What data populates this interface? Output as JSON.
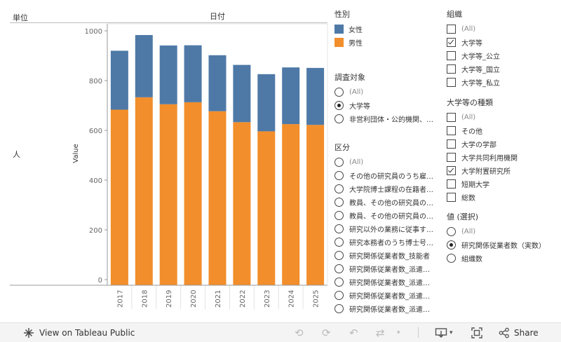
{
  "header": {
    "unit_label": "単位",
    "date_label": "日付",
    "row_value": "人"
  },
  "chart_data": {
    "type": "bar",
    "stacked": true,
    "categories": [
      "2017",
      "2018",
      "2019",
      "2020",
      "2021",
      "2022",
      "2023",
      "2024",
      "2025"
    ],
    "series": [
      {
        "name": "男性",
        "color": "#f28e2b",
        "values": [
          683,
          733,
          705,
          713,
          677,
          633,
          596,
          625,
          622
        ]
      },
      {
        "name": "女性",
        "color": "#4e79a7",
        "values": [
          237,
          250,
          236,
          229,
          225,
          230,
          230,
          228,
          229
        ]
      }
    ],
    "ylabel": "Value",
    "ylim": [
      0,
      1000
    ],
    "yticks": [
      0,
      200,
      400,
      600,
      800,
      1000
    ],
    "grid": false
  },
  "legend": {
    "title": "性別",
    "items": [
      {
        "label": "女性",
        "color": "#4e79a7"
      },
      {
        "label": "男性",
        "color": "#f28e2b"
      }
    ]
  },
  "survey_filter": {
    "title": "調査対象",
    "options": [
      {
        "label": "(All)",
        "selected": false
      },
      {
        "label": "大学等",
        "selected": true
      },
      {
        "label": "非営利団体・公的機関、…",
        "selected": false
      }
    ]
  },
  "category_filter": {
    "title": "区分",
    "options": [
      {
        "label": "(All)",
        "selected": false
      },
      {
        "label": "その他の研究員のうち雇…",
        "selected": false
      },
      {
        "label": "大学院博士課程の在籍者…",
        "selected": false
      },
      {
        "label": "教員、その他の研究員の…",
        "selected": false
      },
      {
        "label": "教員、その他の研究員の…",
        "selected": false
      },
      {
        "label": "研究以外の業務に従事す…",
        "selected": false
      },
      {
        "label": "研究本務者のうち博士号…",
        "selected": false
      },
      {
        "label": "研究関係従業者数_技能者",
        "selected": false
      },
      {
        "label": "研究関係従業者数_派遣…",
        "selected": false
      },
      {
        "label": "研究関係従業者数_派遣…",
        "selected": false
      },
      {
        "label": "研究関係従業者数_派遣…",
        "selected": false
      },
      {
        "label": "研究関係従業者数_派遣…",
        "selected": false
      }
    ]
  },
  "org_filter": {
    "title": "組織",
    "options": [
      {
        "label": "(All)",
        "checked": false
      },
      {
        "label": "大学等",
        "checked": true
      },
      {
        "label": "大学等_公立",
        "checked": false
      },
      {
        "label": "大学等_国立",
        "checked": false
      },
      {
        "label": "大学等_私立",
        "checked": false
      }
    ]
  },
  "univ_type_filter": {
    "title": "大学等の種類",
    "options": [
      {
        "label": "(All)",
        "checked": false
      },
      {
        "label": "その他",
        "checked": false
      },
      {
        "label": "大学の学部",
        "checked": false
      },
      {
        "label": "大学共同利用機関",
        "checked": false
      },
      {
        "label": "大学附置研究所",
        "checked": true
      },
      {
        "label": "短期大学",
        "checked": false
      },
      {
        "label": "総数",
        "checked": false
      }
    ]
  },
  "value_filter": {
    "title": "値 (選択)",
    "options": [
      {
        "label": "(All)",
        "selected": false
      },
      {
        "label": "研究関係従業者数（実数）",
        "selected": true
      },
      {
        "label": "組織数",
        "selected": false
      }
    ]
  },
  "footer": {
    "view_label": "View on Tableau Public",
    "share_label": "Share"
  }
}
